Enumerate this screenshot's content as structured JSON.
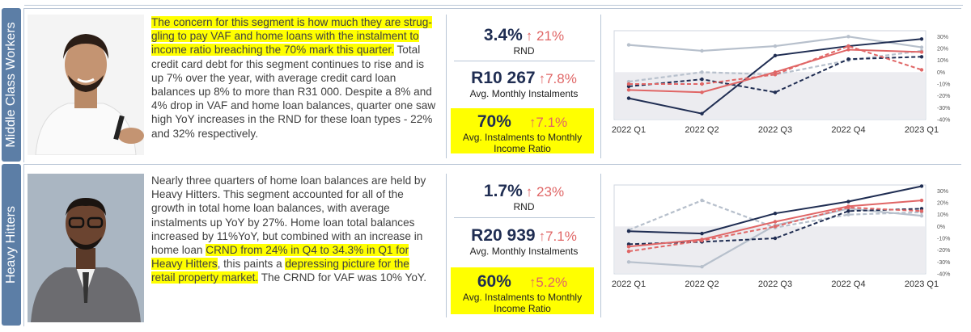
{
  "colors": {
    "navy": "#1f2d52",
    "red": "#e06666",
    "grey": "#b7c0cc",
    "tab": "#5c7ea6",
    "highlight": "#ffff00"
  },
  "segments": [
    {
      "name": "Middle Class Workers",
      "description": [
        {
          "text": "The concern for this segment is how much they are strug-gling to pay VAF and home loans with the instalment to income ratio breaching the 70% mark this quarter.",
          "hl": true
        },
        {
          "text": " Total credit card debt for this segment continues to rise and is up 7% over the year, with average credit card loan balances up 8% to more than R31 000. Despite a 8% and 4% drop in VAF and home loan balances, quarter one saw high YoY increases in the RND for these loan types - 22% and 32% respectively.",
          "hl": false
        }
      ],
      "kpis": {
        "rnd": {
          "value": "3.4%",
          "arrow": "↑",
          "change": "21%",
          "label": "RND"
        },
        "instalments": {
          "value": "R10 267",
          "arrow": "↑",
          "change": "7.8%",
          "label": "Avg. Monthly Instalments"
        },
        "ratio": {
          "value": "70%",
          "arrow": "↑",
          "change": "7.1%",
          "label_line1": "Avg. Instalments to Monthly",
          "label_line2": "Income Ratio"
        }
      }
    },
    {
      "name": "Heavy Hitters",
      "description": [
        {
          "text": "Nearly three quarters of home loan balances are held by Heavy Hitters.  This segment accounted for all of the growth in total home loan balances,  with average instalments up YoY by 27%.  Home loan total balances increased by 11%YoY, but combined with an increase in home loan ",
          "hl": false
        },
        {
          "text": "CRND from 24% in Q4 to 34.3% in Q1 for Heavy Hitters",
          "hl": true
        },
        {
          "text": ", this paints a ",
          "hl": false
        },
        {
          "text": "depressing picture for the retail property market.",
          "hl": true
        },
        {
          "text": " The CRND for VAF was 10% YoY.",
          "hl": false
        }
      ],
      "kpis": {
        "rnd": {
          "value": "1.7%",
          "arrow": "↑",
          "change": "23%",
          "label": "RND"
        },
        "instalments": {
          "value": "R20 939",
          "arrow": "↑",
          "change": "7.1%",
          "label": "Avg. Monthly Instalments"
        },
        "ratio": {
          "value": "60%",
          "arrow": "↑",
          "change": "5.2%",
          "label_line1": "Avg. Instalments to Monthly",
          "label_line2": "Income Ratio"
        }
      }
    }
  ],
  "chart_data": [
    {
      "type": "line",
      "x": [
        "2022 Q1",
        "2022 Q2",
        "2022 Q3",
        "2022 Q4",
        "2023 Q1"
      ],
      "yticks": [
        "30%",
        "20%",
        "10%",
        "0%",
        "-10%",
        "-20%",
        "-30%",
        "-40%"
      ],
      "ylim": [
        -40,
        35
      ],
      "grid": false,
      "negative_band": true,
      "series": [
        {
          "color": "#b7c0cc",
          "style": "solid",
          "values": [
            23,
            18,
            22,
            30,
            21
          ]
        },
        {
          "color": "#b7c0cc",
          "style": "dashed",
          "values": [
            -8,
            0,
            -2,
            10,
            18
          ]
        },
        {
          "color": "#1f2d52",
          "style": "solid",
          "values": [
            -22,
            -35,
            14,
            22,
            28
          ]
        },
        {
          "color": "#1f2d52",
          "style": "dashed",
          "values": [
            -12,
            -6,
            -17,
            11,
            13
          ]
        },
        {
          "color": "#e06666",
          "style": "solid",
          "values": [
            -15,
            -17,
            0,
            19,
            17
          ]
        },
        {
          "color": "#e06666",
          "style": "dashed",
          "values": [
            -10,
            -10,
            -2,
            22,
            2
          ]
        }
      ]
    },
    {
      "type": "line",
      "x": [
        "2022 Q1",
        "2022 Q2",
        "2022 Q3",
        "2022 Q4",
        "2023 Q1"
      ],
      "yticks": [
        "30%",
        "20%",
        "10%",
        "0%",
        "-10%",
        "-20%",
        "-30%",
        "-40%"
      ],
      "ylim": [
        -40,
        35
      ],
      "grid": false,
      "negative_band": true,
      "series": [
        {
          "color": "#b7c0cc",
          "style": "solid",
          "values": [
            -30,
            -34,
            1,
            15,
            9
          ]
        },
        {
          "color": "#b7c0cc",
          "style": "dashed",
          "values": [
            -3,
            22,
            -1,
            10,
            12
          ]
        },
        {
          "color": "#1f2d52",
          "style": "solid",
          "values": [
            -4,
            -6,
            11,
            21,
            34
          ]
        },
        {
          "color": "#1f2d52",
          "style": "dashed",
          "values": [
            -15,
            -13,
            -10,
            13,
            15
          ]
        },
        {
          "color": "#e06666",
          "style": "solid",
          "values": [
            -17,
            -11,
            4,
            17,
            22
          ]
        },
        {
          "color": "#e06666",
          "style": "dashed",
          "values": [
            -21,
            -12,
            0,
            16,
            13
          ]
        }
      ]
    }
  ]
}
